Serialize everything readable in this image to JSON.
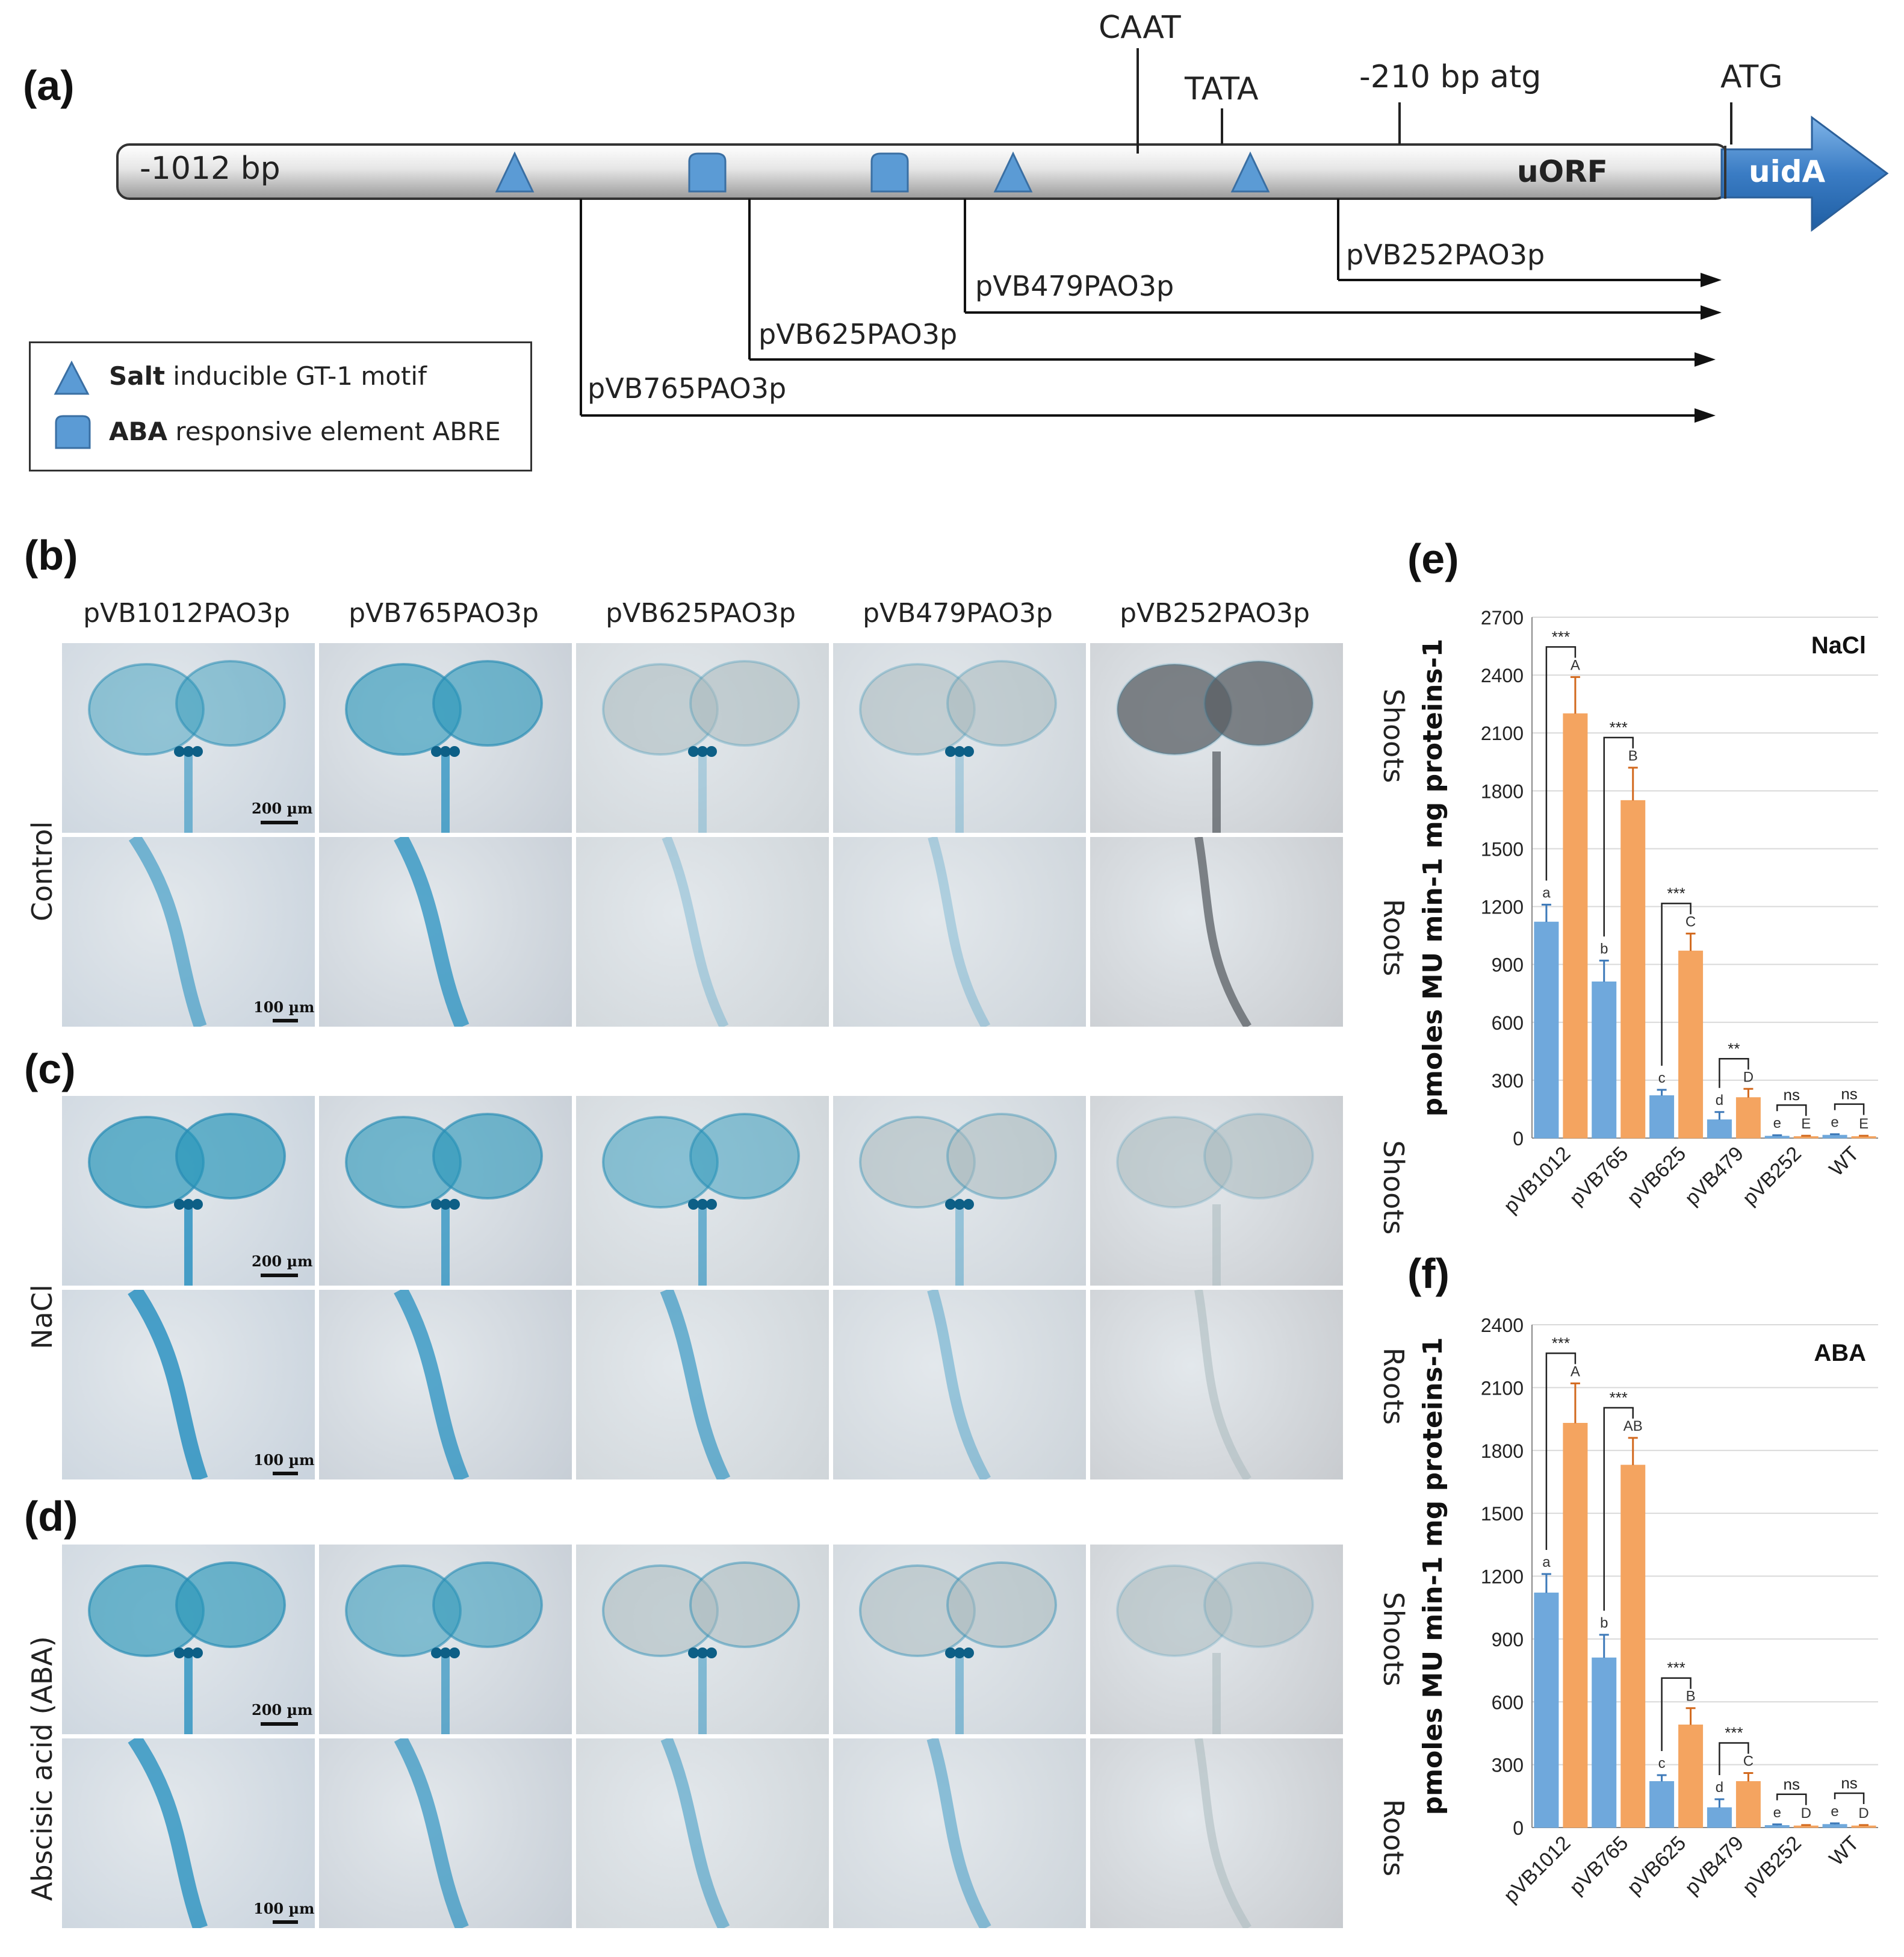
{
  "panels": {
    "a": "(a)",
    "b": "(b)",
    "c": "(c)",
    "d": "(d)",
    "e": "(e)",
    "f": "(f)"
  },
  "promoter": {
    "start_label": "-1012 bp",
    "uorf_label": "uORF",
    "gene_label": "uidA",
    "caat": "CAAT",
    "tata": "TATA",
    "bp210": "-210 bp atg",
    "atg": "ATG",
    "constructs": [
      "pVB765PAO3p",
      "pVB625PAO3p",
      "pVB479PAO3p",
      "pVB252PAO3p"
    ],
    "legend": {
      "salt_bold": "Salt",
      "salt_rest": " inducible GT-1 motif",
      "aba_bold": "ABA",
      "aba_rest": " responsive element ABRE"
    },
    "colors": {
      "motif": "#5b9bd5",
      "arrow": "#3a7cc4"
    }
  },
  "micrographs": {
    "columns": [
      "pVB1012PAO3p",
      "pVB765PAO3p",
      "pVB625PAO3p",
      "pVB479PAO3p",
      "pVB252PAO3p"
    ],
    "conditions": [
      "Control",
      "NaCl",
      "Abscisic acid (ABA)"
    ],
    "tissues": [
      "Shoots",
      "Roots"
    ],
    "scale_shoots": "200 µm",
    "scale_roots": "100 µm"
  },
  "chart_data": [
    {
      "type": "bar",
      "title": "NaCl",
      "ylabel": "pmoles MU min-1 mg proteins-1",
      "ylim": [
        0,
        2700
      ],
      "yticks": [
        0,
        300,
        600,
        900,
        1200,
        1500,
        1800,
        2100,
        2400,
        2700
      ],
      "categories": [
        "pVB1012",
        "pVB765",
        "pVB625",
        "pVB479",
        "pVB252",
        "WT"
      ],
      "series": [
        {
          "values": [
            1120,
            810,
            220,
            95,
            10,
            15
          ],
          "errors": [
            90,
            110,
            30,
            40,
            5,
            5
          ],
          "letters": [
            "a",
            "b",
            "c",
            "d",
            "e",
            "e"
          ],
          "color": "#6fa8dc"
        },
        {
          "values": [
            2200,
            1750,
            970,
            210,
            8,
            8
          ],
          "errors": [
            190,
            170,
            90,
            45,
            4,
            4
          ],
          "letters": [
            "A",
            "B",
            "C",
            "D",
            "E",
            "E"
          ],
          "color": "#f4a460"
        }
      ],
      "significance": [
        "***",
        "***",
        "***",
        "**",
        "ns",
        "ns"
      ]
    },
    {
      "type": "bar",
      "title": "ABA",
      "ylabel": "pmoles MU min-1 mg proteins-1",
      "ylim": [
        0,
        2400
      ],
      "yticks": [
        0,
        300,
        600,
        900,
        1200,
        1500,
        1800,
        2100,
        2400
      ],
      "categories": [
        "pVB1012",
        "pVB765",
        "pVB625",
        "pVB479",
        "pVB252",
        "WT"
      ],
      "series": [
        {
          "values": [
            1120,
            810,
            220,
            95,
            10,
            15
          ],
          "errors": [
            90,
            110,
            30,
            40,
            5,
            5
          ],
          "letters": [
            "a",
            "b",
            "c",
            "d",
            "e",
            "e"
          ],
          "color": "#6fa8dc"
        },
        {
          "values": [
            1930,
            1730,
            490,
            220,
            8,
            8
          ],
          "errors": [
            190,
            130,
            80,
            40,
            4,
            4
          ],
          "letters": [
            "A",
            "AB",
            "B",
            "C",
            "D",
            "D"
          ],
          "color": "#f4a460"
        }
      ],
      "significance": [
        "***",
        "***",
        "***",
        "***",
        "ns",
        "ns"
      ]
    }
  ]
}
